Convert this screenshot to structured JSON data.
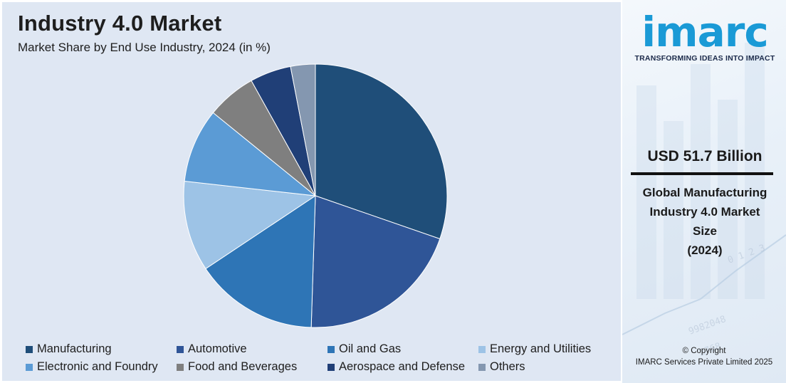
{
  "header": {
    "title": "Industry 4.0 Market",
    "subtitle": "Market Share by End Use Industry, 2024 (in %)"
  },
  "chart_data": {
    "type": "pie",
    "title": "Industry 4.0 Market",
    "subtitle": "Market Share by End Use Industry, 2024 (in %)",
    "unit": "%",
    "legend_position": "bottom",
    "categories": [
      "Manufacturing",
      "Automotive",
      "Oil and Gas",
      "Energy and Utilities",
      "Electronic and Foundry",
      "Food and Beverages",
      "Aerospace and Defense",
      "Others"
    ],
    "values": [
      30,
      20,
      15,
      11,
      9,
      6,
      5,
      3
    ],
    "colors": [
      "#1f4e79",
      "#2f5597",
      "#2e75b6",
      "#9dc3e6",
      "#5b9bd5",
      "#7f7f7f",
      "#203f77",
      "#8497b0"
    ]
  },
  "sidebar": {
    "logo_text": "imarc",
    "tagline": "TRANSFORMING IDEAS INTO IMPACT",
    "market_value": "USD 51.7 Billion",
    "market_desc_lines": [
      "Global Manufacturing",
      "Industry 4.0 Market",
      "Size",
      "(2024)"
    ],
    "copyright_line1": "© Copyright",
    "copyright_line2": "IMARC Services Private Limited 2025"
  }
}
